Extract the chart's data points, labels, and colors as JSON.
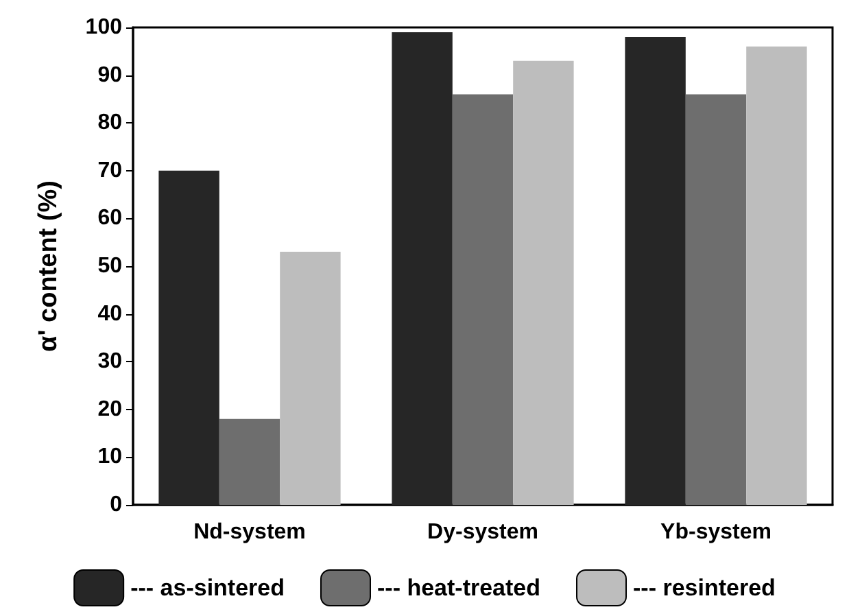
{
  "chart_data": {
    "type": "bar",
    "ylabel": "α' content (%)",
    "categories": [
      "Nd-system",
      "Dy-system",
      "Yb-system"
    ],
    "series": [
      {
        "name": "--- as-sintered",
        "color": "#262626",
        "values": [
          70,
          99,
          98
        ]
      },
      {
        "name": "--- heat-treated",
        "color": "#6e6e6e",
        "values": [
          18,
          86,
          86
        ]
      },
      {
        "name": "--- resintered",
        "color": "#bdbdbd",
        "values": [
          53,
          93,
          96
        ]
      }
    ],
    "ylim": [
      0,
      100
    ],
    "yticks": [
      0,
      10,
      20,
      30,
      40,
      50,
      60,
      70,
      80,
      90,
      100
    ],
    "grid": false,
    "legend": "bottom"
  }
}
